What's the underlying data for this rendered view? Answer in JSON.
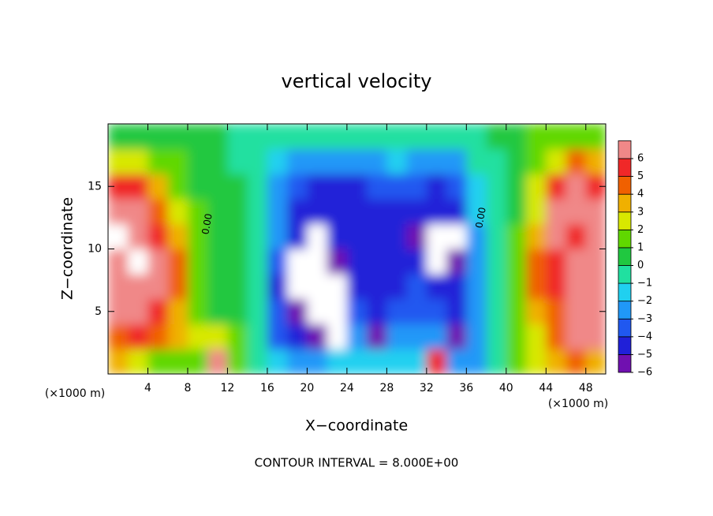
{
  "chart_data": {
    "type": "contour",
    "title": "vertical velocity",
    "x_label": "X−coordinate",
    "y_label": "Z−coordinate",
    "x_unit": "(×1000 m)",
    "footer": "CONTOUR INTERVAL = 8.000E+00",
    "contour_labels": [
      "0.00",
      "0.00"
    ],
    "x": [
      1,
      3,
      5,
      7,
      9,
      11,
      13,
      15,
      17,
      19,
      21,
      23,
      25,
      27,
      29,
      31,
      33,
      35,
      37,
      39,
      41,
      43,
      45,
      47,
      49
    ],
    "y": [
      1,
      3,
      5,
      7,
      9,
      11,
      13,
      15,
      17,
      19
    ],
    "z": [
      [
        3,
        2,
        1,
        1,
        1,
        6.5,
        1.5,
        -1,
        -2,
        -3,
        -3,
        -2,
        -2,
        -2,
        -2,
        -2,
        5,
        -3,
        -3,
        -0.5,
        1,
        2,
        3,
        4,
        3
      ],
      [
        4,
        5,
        4,
        3,
        2,
        2,
        1,
        -0.5,
        -4,
        -5,
        -6,
        -7,
        -3,
        -6,
        -3,
        -3,
        -3,
        -6,
        -3,
        -0.5,
        1,
        2,
        4,
        6,
        6
      ],
      [
        7,
        7,
        5,
        3,
        1.5,
        0.5,
        0.3,
        -0.5,
        -4,
        -5.5,
        -7,
        -7,
        -4,
        -4.5,
        -4,
        -4,
        -4,
        -5,
        -3,
        -0.5,
        1,
        3,
        4,
        7,
        7
      ],
      [
        7,
        7,
        7,
        4,
        1.5,
        0.5,
        0.3,
        -0.5,
        -4.5,
        -6.5,
        -7,
        -7,
        -5,
        -5,
        -4.5,
        -4,
        -5,
        -5,
        -3,
        -0.5,
        1,
        4,
        5,
        7,
        7
      ],
      [
        7,
        8,
        6,
        4,
        1.5,
        0.5,
        0.2,
        -0.5,
        -4,
        -6.5,
        -7,
        -6,
        -5,
        -5,
        -4.5,
        -5,
        -7,
        -6,
        -3,
        -0.5,
        1,
        4,
        5,
        7,
        7
      ],
      [
        8,
        7,
        5,
        3,
        1,
        0.5,
        0.2,
        -0.5,
        -3,
        -5,
        -7,
        -5,
        -4.5,
        -4.5,
        -4.5,
        -5.5,
        -7,
        -6.5,
        -2.5,
        -0.5,
        1,
        3,
        6.5,
        5,
        6
      ],
      [
        7,
        6,
        4,
        2,
        1,
        0.5,
        0.2,
        -0.5,
        -3,
        -4.5,
        -5,
        -4.5,
        -4.5,
        -4.5,
        -4.5,
        -4.5,
        -5,
        -4.5,
        -2,
        -0.5,
        0.5,
        2,
        7,
        7,
        6
      ],
      [
        5,
        5,
        3,
        1.5,
        0.5,
        0.5,
        0.2,
        -0.8,
        -2.5,
        -4,
        -4.5,
        -4.5,
        -4.5,
        -4,
        -3.5,
        -4,
        -4.5,
        -4,
        -2,
        -0.5,
        0.5,
        2,
        5,
        7,
        5
      ],
      [
        2,
        2,
        1.5,
        1,
        0.5,
        0.5,
        -0.5,
        -1,
        -1.5,
        -2.5,
        -3,
        -3,
        -3,
        -2.5,
        -2,
        -2.5,
        -3,
        -2.5,
        -1,
        -0.5,
        0.5,
        1.5,
        2,
        4,
        3
      ],
      [
        0.5,
        0.5,
        0.5,
        0.5,
        0.5,
        0.5,
        -0.5,
        -0.5,
        -0.8,
        -1,
        -1,
        -1,
        -1,
        -0.8,
        -0.8,
        -1,
        -1,
        -1,
        -0.5,
        0.5,
        0.5,
        1,
        1,
        1,
        1
      ]
    ],
    "xlim": [
      0,
      50
    ],
    "ylim": [
      0,
      20
    ],
    "xticks": [
      4,
      8,
      12,
      16,
      20,
      24,
      28,
      32,
      36,
      40,
      44,
      48
    ],
    "yticks": [
      5,
      10,
      15
    ],
    "colorbar_lim": [
      -6,
      6
    ],
    "colorbar_ticks": [
      {
        "value": -6,
        "label": "−6"
      },
      {
        "value": -5,
        "label": "−5"
      },
      {
        "value": -4,
        "label": "−4"
      },
      {
        "value": -3,
        "label": "−3"
      },
      {
        "value": -2,
        "label": "−2"
      },
      {
        "value": -1,
        "label": "−1"
      },
      0,
      1,
      2,
      3,
      4,
      5,
      6
    ],
    "colors": [
      "#7010b0",
      "#2020d8",
      "#2058f0",
      "#2098f8",
      "#20d0f0",
      "#20e0a0",
      "#20c840",
      "#60d800",
      "#d8e800",
      "#f0b000",
      "#f06000",
      "#f02828",
      "#f08888"
    ],
    "out_of_range_color": "#ffffff"
  }
}
